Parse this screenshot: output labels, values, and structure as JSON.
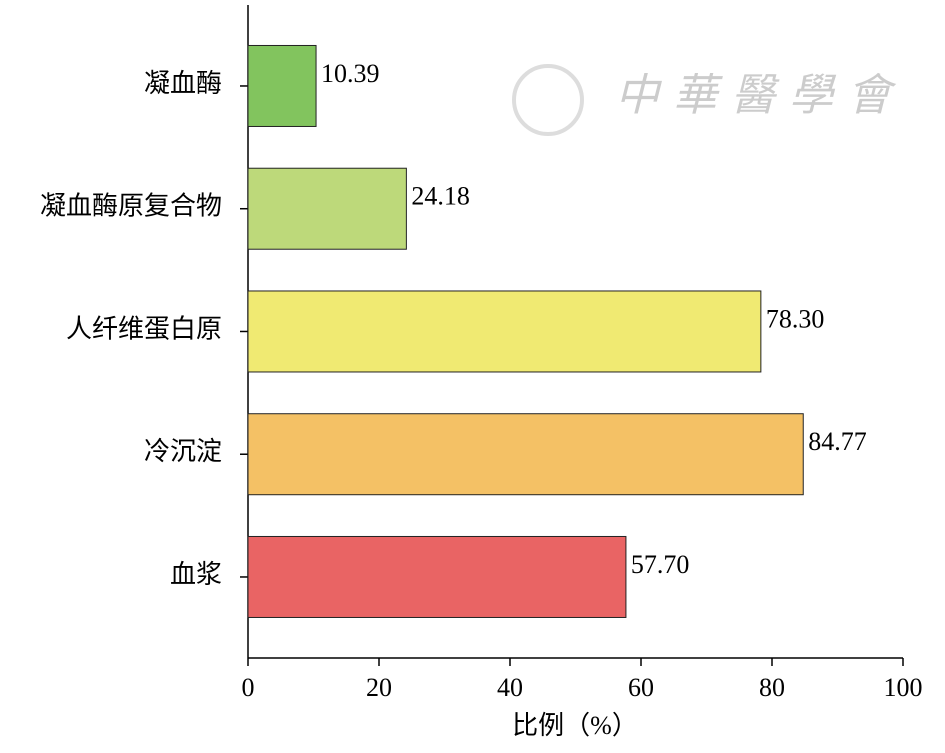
{
  "chart_data": {
    "type": "bar",
    "orientation": "horizontal",
    "watermark": "中華醫學會",
    "x_label": "比例（%）",
    "categories": [
      "凝血酶",
      "凝血酶原复合物",
      "人纤维蛋白原",
      "冷沉淀",
      "血浆"
    ],
    "values": [
      10.39,
      24.18,
      78.3,
      84.77,
      57.7
    ],
    "value_labels": [
      "10.39",
      "24.18",
      "78.30",
      "84.77",
      "57.70"
    ],
    "colors": [
      "#82c45e",
      "#bdd97a",
      "#f0ea72",
      "#f4c165",
      "#e96464"
    ],
    "xlim": [
      0,
      100
    ],
    "xticks": [
      0,
      20,
      40,
      60,
      80,
      100
    ]
  }
}
